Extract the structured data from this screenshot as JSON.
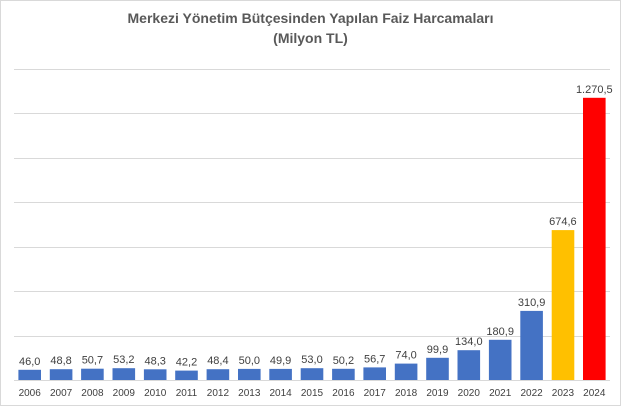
{
  "chart_data": {
    "type": "bar",
    "title": "Merkezi Yönetim Bütçesinden Yapılan Faiz Harcamaları",
    "subtitle": "(Milyon TL)",
    "xlabel": "",
    "ylabel": "",
    "grid": true,
    "legend": "none",
    "ylim": [
      0,
      1400
    ],
    "gridline_step": 200,
    "categories": [
      "2006",
      "2007",
      "2008",
      "2009",
      "2010",
      "2011",
      "2012",
      "2013",
      "2014",
      "2015",
      "2016",
      "2017",
      "2018",
      "2019",
      "2020",
      "2021",
      "2022",
      "2023",
      "2024"
    ],
    "values": [
      46.0,
      48.8,
      50.7,
      53.2,
      48.3,
      42.2,
      48.4,
      50.0,
      49.9,
      53.0,
      50.2,
      56.7,
      74.0,
      99.9,
      134.0,
      180.9,
      310.9,
      674.6,
      1270.5
    ],
    "data_labels": [
      "46,0",
      "48,8",
      "50,7",
      "53,2",
      "48,3",
      "42,2",
      "48,4",
      "50,0",
      "49,9",
      "53,0",
      "50,2",
      "56,7",
      "74,0",
      "99,9",
      "134,0",
      "180,9",
      "310,9",
      "674,6",
      "1.270,5"
    ],
    "bar_colors": [
      "#4472c4",
      "#4472c4",
      "#4472c4",
      "#4472c4",
      "#4472c4",
      "#4472c4",
      "#4472c4",
      "#4472c4",
      "#4472c4",
      "#4472c4",
      "#4472c4",
      "#4472c4",
      "#4472c4",
      "#4472c4",
      "#4472c4",
      "#4472c4",
      "#4472c4",
      "#ffc000",
      "#ff0000"
    ]
  }
}
